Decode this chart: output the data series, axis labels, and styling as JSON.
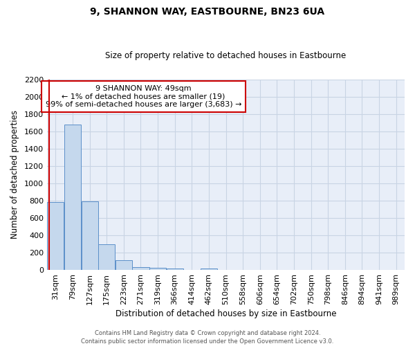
{
  "title": "9, SHANNON WAY, EASTBOURNE, BN23 6UA",
  "subtitle": "Size of property relative to detached houses in Eastbourne",
  "xlabel": "Distribution of detached houses by size in Eastbourne",
  "ylabel": "Number of detached properties",
  "categories": [
    "31sqm",
    "79sqm",
    "127sqm",
    "175sqm",
    "223sqm",
    "271sqm",
    "319sqm",
    "366sqm",
    "414sqm",
    "462sqm",
    "510sqm",
    "558sqm",
    "606sqm",
    "654sqm",
    "702sqm",
    "750sqm",
    "798sqm",
    "846sqm",
    "894sqm",
    "941sqm",
    "989sqm"
  ],
  "values": [
    780,
    1680,
    795,
    295,
    110,
    35,
    28,
    20,
    0,
    15,
    0,
    0,
    0,
    0,
    0,
    0,
    0,
    0,
    0,
    0,
    0
  ],
  "bar_color": "#c5d8ed",
  "bar_edge_color": "#5b8fc9",
  "grid_color": "#c8d4e4",
  "background_color": "#e8eef8",
  "annotation_box_text": "9 SHANNON WAY: 49sqm\n← 1% of detached houses are smaller (19)\n99% of semi-detached houses are larger (3,683) →",
  "annotation_box_color": "#ffffff",
  "annotation_box_edge_color": "#cc0000",
  "ylim": [
    0,
    2200
  ],
  "yticks": [
    0,
    200,
    400,
    600,
    800,
    1000,
    1200,
    1400,
    1600,
    1800,
    2000,
    2200
  ],
  "footer_line1": "Contains HM Land Registry data © Crown copyright and database right 2024.",
  "footer_line2": "Contains public sector information licensed under the Open Government Licence v3.0."
}
